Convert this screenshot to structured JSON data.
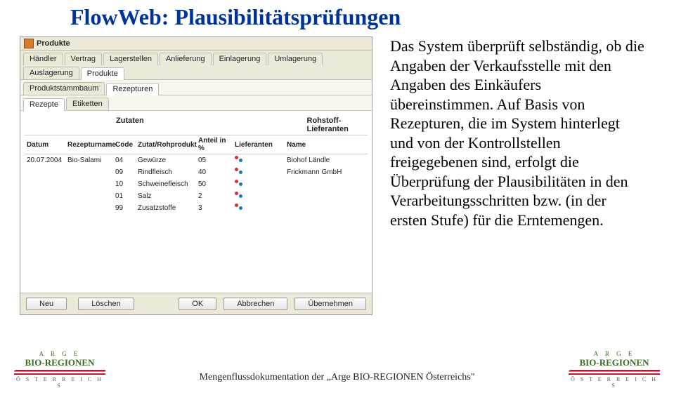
{
  "title": "FlowWeb: Plausibilitätsprüfungen",
  "body_text": "Das System überprüft selbständig, ob die Angaben der Verkaufsstelle mit den Angaben des Einkäufers übereinstimmen. Auf Basis von Rezepturen, die im System hinterlegt und von der Kontrollstellen freigegebenen sind, erfolgt die Überprüfung der Plausibilitäten in den Verarbeitungsschritten bzw. (in der ersten Stufe) für die Erntemengen.",
  "footer": "Mengenflussdokumentation der „Arge BIO-REGIONEN Österreichs\"",
  "logo": {
    "line1": "A R G E",
    "line2_a": "BIO",
    "line2_dash": "-",
    "line2_b": "REGIONEN",
    "line3": "Ö S T E R R E I C H S"
  },
  "app": {
    "window_title": "Produkte",
    "tabs1": [
      "Händler",
      "Vertrag",
      "Lagerstellen",
      "Anlieferung",
      "Einlagerung",
      "Umlagerung",
      "Auslagerung",
      "Produkte"
    ],
    "tabs1_active": 7,
    "tabs2": [
      "Produktstammbaum",
      "Rezepturen"
    ],
    "tabs2_active": 1,
    "tabs3": [
      "Rezepte",
      "Etiketten"
    ],
    "tabs3_active": 0,
    "section_labels": {
      "left": "Zutaten",
      "right": "Rohstoff-Lieferanten"
    },
    "columns": [
      "Datum",
      "Rezepturname",
      "Code",
      "Zutat/Rohprodukt",
      "Anteil in %",
      "Lieferanten",
      "",
      "Name"
    ],
    "rows": [
      {
        "datum": "20.07.2004",
        "name": "Bio-Salami",
        "code": "04",
        "zutat": "Gewürze",
        "anteil": "05",
        "lief_name": "Biohof Ländle"
      },
      {
        "datum": "",
        "name": "",
        "code": "09",
        "zutat": "Rindfleisch",
        "anteil": "40",
        "lief_name": "Frickmann GmbH"
      },
      {
        "datum": "",
        "name": "",
        "code": "10",
        "zutat": "Schweinefleisch",
        "anteil": "50",
        "lief_name": ""
      },
      {
        "datum": "",
        "name": "",
        "code": "01",
        "zutat": "Salz",
        "anteil": "2",
        "lief_name": ""
      },
      {
        "datum": "",
        "name": "",
        "code": "99",
        "zutat": "Zusatzstoffe",
        "anteil": "3",
        "lief_name": ""
      }
    ],
    "buttons": {
      "neu": "Neu",
      "loeschen": "Löschen",
      "ok": "OK",
      "abbrechen": "Abbrechen",
      "uebernehmen": "Übernehmen"
    }
  }
}
